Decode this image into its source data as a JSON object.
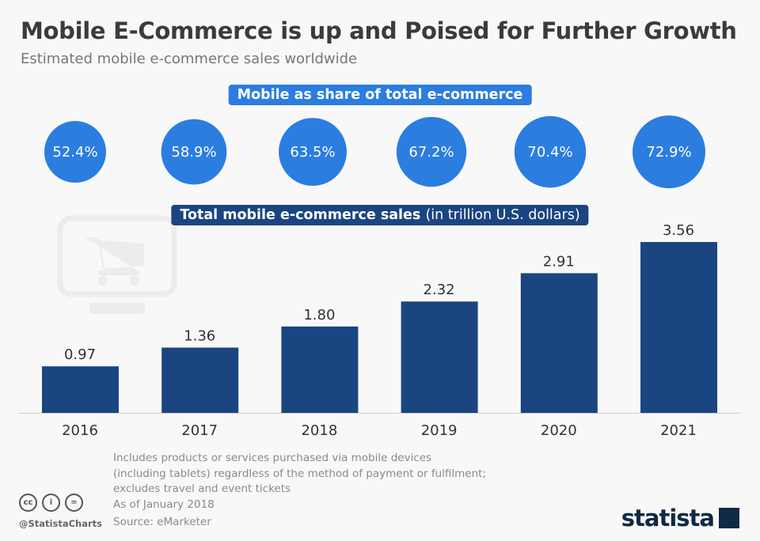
{
  "header": {
    "title": "Mobile E-Commerce is up and Poised for Further Growth",
    "subtitle": "Estimated mobile e-commerce sales worldwide"
  },
  "colors": {
    "share_circle": "#2b7de0",
    "bar": "#1b4581",
    "background": "#f8f8f8"
  },
  "chart_data": [
    {
      "type": "bubble",
      "title": "Mobile as share of total e-commerce",
      "categories": [
        "2016",
        "2017",
        "2018",
        "2019",
        "2020",
        "2021"
      ],
      "values": [
        52.4,
        58.9,
        63.5,
        67.2,
        70.4,
        72.9
      ],
      "labels": [
        "52.4%",
        "58.9%",
        "63.5%",
        "67.2%",
        "70.4%",
        "72.9%"
      ]
    },
    {
      "type": "bar",
      "title_bold": "Total mobile e-commerce sales",
      "title_unit": "(in trillion U.S. dollars)",
      "categories": [
        "2016",
        "2017",
        "2018",
        "2019",
        "2020",
        "2021"
      ],
      "values": [
        0.97,
        1.36,
        1.8,
        2.32,
        2.91,
        3.56
      ],
      "labels": [
        "0.97",
        "1.36",
        "1.80",
        "2.32",
        "2.91",
        "3.56"
      ],
      "ylim": [
        0,
        3.56
      ],
      "grid": false
    }
  ],
  "footer": {
    "notes": [
      "Includes products or services purchased via mobile devices",
      "(including tablets) regardless of the method of payment or fulfilment;",
      "excludes travel and event tickets",
      "As of January 2018"
    ],
    "source": "Source: eMarketer",
    "handle": "@StatistaCharts",
    "logo": "statista",
    "cc_icons": [
      "cc",
      "i",
      "="
    ]
  }
}
